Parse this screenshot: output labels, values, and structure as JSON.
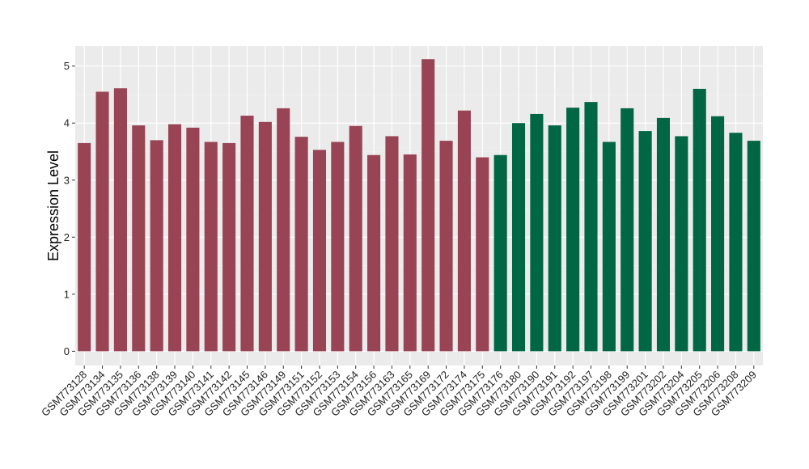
{
  "chart_data": {
    "type": "bar",
    "title": "",
    "xlabel": "",
    "ylabel": "Expression Level",
    "ylim": [
      -0.25,
      5.35
    ],
    "yticks": [
      0,
      1,
      2,
      3,
      4,
      5
    ],
    "grid": true,
    "background": "#ebebeb",
    "categories": [
      "GSM773128",
      "GSM773134",
      "GSM773135",
      "GSM773136",
      "GSM773138",
      "GSM773139",
      "GSM773140",
      "GSM773141",
      "GSM773142",
      "GSM773145",
      "GSM773146",
      "GSM773149",
      "GSM773151",
      "GSM773152",
      "GSM773153",
      "GSM773154",
      "GSM773156",
      "GSM773163",
      "GSM773165",
      "GSM773169",
      "GSM773172",
      "GSM773174",
      "GSM773175",
      "GSM773176",
      "GSM773180",
      "GSM773190",
      "GSM773191",
      "GSM773192",
      "GSM773197",
      "GSM773198",
      "GSM773199",
      "GSM773201",
      "GSM773202",
      "GSM773204",
      "GSM773205",
      "GSM773206",
      "GSM773208",
      "GSM773209"
    ],
    "values": [
      3.65,
      4.55,
      4.61,
      3.96,
      3.7,
      3.98,
      3.92,
      3.67,
      3.65,
      4.13,
      4.02,
      4.26,
      3.76,
      3.53,
      3.67,
      3.95,
      3.44,
      3.77,
      3.45,
      5.12,
      3.69,
      4.22,
      3.4,
      3.44,
      4.0,
      4.16,
      3.96,
      4.27,
      4.37,
      3.67,
      4.26,
      3.86,
      4.09,
      3.77,
      4.6,
      4.12,
      3.83,
      3.69
    ],
    "groups": [
      0,
      0,
      0,
      0,
      0,
      0,
      0,
      0,
      0,
      0,
      0,
      0,
      0,
      0,
      0,
      0,
      0,
      0,
      0,
      0,
      0,
      0,
      0,
      1,
      1,
      1,
      1,
      1,
      1,
      1,
      1,
      1,
      1,
      1,
      1,
      1,
      1,
      1
    ],
    "colors": [
      "#994455",
      "#006644"
    ]
  }
}
